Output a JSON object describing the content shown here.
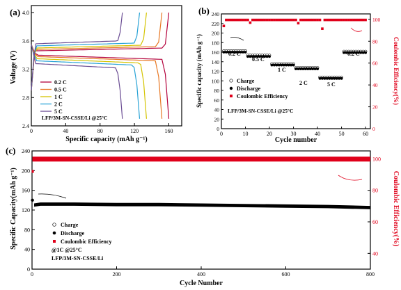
{
  "colors": {
    "red": "#e0001a",
    "axis": "#000000",
    "c02": "#b3003b",
    "c05": "#e87722",
    "c1": "#d4c400",
    "c2": "#29a3d6",
    "c5": "#6a4c93"
  },
  "panel_a": {
    "label": "(a)",
    "ylabel": "Voltage (V)",
    "xlabel": "Specific capacity (mAh g⁻¹)",
    "note": "LFP/3M-SN-CSSE/Li @25°C",
    "yticks": [
      "2.4",
      "2.8",
      "3.2",
      "3.6",
      "4.0"
    ],
    "xticks": [
      "0",
      "40",
      "80",
      "120",
      "160"
    ],
    "legend": [
      "0.2 C",
      "0.5 C",
      "1 C",
      "2 C",
      "5 C"
    ]
  },
  "panel_b": {
    "label": "(b)",
    "ylabel": "Specific capacity (mAh g⁻¹)",
    "y2label": "Coulombic Efficiency(%)",
    "xlabel": "Cycle number",
    "note": "LFP/3M-SN-CSSE/Li @25°C",
    "yticks": [
      "0",
      "20",
      "40",
      "60",
      "80",
      "100",
      "120",
      "140",
      "160",
      "180",
      "200",
      "220",
      "240"
    ],
    "y2ticks": [
      "0",
      "20",
      "40",
      "60",
      "80",
      "100"
    ],
    "xticks": [
      "0",
      "10",
      "20",
      "30",
      "40",
      "50",
      "60"
    ],
    "legend": [
      "Charge",
      "Discharge",
      "Coulombic Efficiency"
    ],
    "rate_labels": [
      "0.2 C",
      "0.5 C",
      "1 C",
      "2 C",
      "5 C",
      "0.2 C"
    ]
  },
  "panel_c": {
    "label": "(c)",
    "ylabel": "Specific Capacity(mAh g⁻¹)",
    "y2label": "Coulombic Efficiency(%)",
    "xlabel": "Cycle Number",
    "yticks": [
      "0",
      "40",
      "80",
      "120",
      "160",
      "200",
      "240"
    ],
    "y2ticks": [
      "40",
      "60",
      "80",
      "100"
    ],
    "xticks": [
      "0",
      "200",
      "400",
      "600",
      "800"
    ],
    "legend": [
      "Charge",
      "Discharge",
      "Coulombic Efficiency"
    ],
    "note1": "@1C @25°C",
    "note2": "LFP/3M-SN-CSSE/Li"
  },
  "chart_data": [
    {
      "type": "line",
      "title": "",
      "xlabel": "Specific capacity (mAh g⁻¹)",
      "ylabel": "Voltage (V)",
      "xlim": [
        0,
        175
      ],
      "ylim": [
        2.4,
        4.1
      ],
      "series": [
        {
          "name": "0.2 C",
          "capacity": 160,
          "charge_plateau": 3.46,
          "discharge_plateau": 3.4
        },
        {
          "name": "0.5 C",
          "capacity": 152,
          "charge_plateau": 3.48,
          "discharge_plateau": 3.38
        },
        {
          "name": "1 C",
          "capacity": 134,
          "charge_plateau": 3.5,
          "discharge_plateau": 3.35
        },
        {
          "name": "2 C",
          "capacity": 126,
          "charge_plateau": 3.53,
          "discharge_plateau": 3.32
        },
        {
          "name": "5 C",
          "capacity": 106,
          "charge_plateau": 3.56,
          "discharge_plateau": 3.28
        }
      ]
    },
    {
      "type": "scatter",
      "title": "",
      "xlabel": "Cycle number",
      "ylabel": "Specific capacity (mAh g⁻¹)",
      "xlim": [
        0,
        62
      ],
      "ylim": [
        0,
        240
      ],
      "y2lim": [
        0,
        105
      ],
      "steps": [
        {
          "rate": "0.2 C",
          "cycles": [
            1,
            10
          ],
          "charge": 161,
          "discharge": 160
        },
        {
          "rate": "0.5 C",
          "cycles": [
            11,
            20
          ],
          "charge": 152,
          "discharge": 151
        },
        {
          "rate": "1 C",
          "cycles": [
            21,
            30
          ],
          "charge": 134,
          "discharge": 133
        },
        {
          "rate": "2 C",
          "cycles": [
            31,
            40
          ],
          "charge": 126,
          "discharge": 125
        },
        {
          "rate": "5 C",
          "cycles": [
            41,
            50
          ],
          "charge": 106,
          "discharge": 105
        },
        {
          "rate": "0.2 C",
          "cycles": [
            51,
            60
          ],
          "charge": 160,
          "discharge": 159
        }
      ],
      "coulombic_efficiency": 99.5
    },
    {
      "type": "scatter",
      "title": "",
      "xlabel": "Cycle Number",
      "ylabel": "Specific Capacity(mAh g⁻¹)",
      "xlim": [
        0,
        800
      ],
      "ylim": [
        0,
        240
      ],
      "y2lim": [
        30,
        105
      ],
      "discharge": {
        "x": [
          1,
          5,
          20,
          100,
          200,
          300,
          400,
          500,
          600,
          700,
          800
        ],
        "y": [
          140,
          130,
          132,
          132,
          131,
          131,
          130,
          129,
          128,
          127,
          125
        ]
      },
      "coulombic_efficiency": 99.8
    }
  ]
}
